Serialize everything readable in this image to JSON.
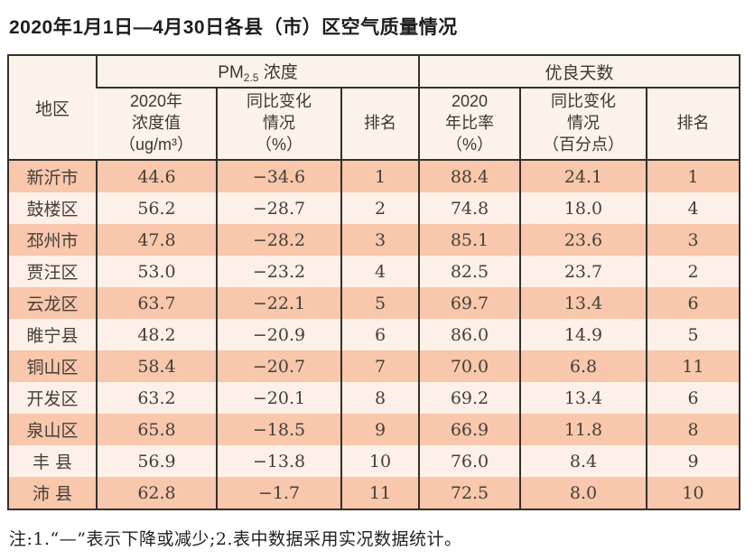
{
  "page": {
    "title": "2020年1月1日—4月30日各县（市）区空气质量情况",
    "note": "注:1.“—”表示下降或减少;2.表中数据采用实况数据统计。"
  },
  "colors": {
    "row_odd": "#f8c7ac",
    "row_even": "#fdf0e8",
    "header_bg": "#fbf3ea",
    "border": "#34302d"
  },
  "table": {
    "header": {
      "region": "地区",
      "pm_group_prefix": "PM",
      "pm_group_sub": "2.5",
      "pm_group_suffix": " 浓度",
      "days_group": "优良天数",
      "pm_value": "2020年\n浓度值\n（ug/m³）",
      "pm_change": "同比变化\n情况\n（%）",
      "pm_rank": "排名",
      "days_ratio": "2020\n年比率\n（%）",
      "days_change": "同比变化\n情况\n（百分点）",
      "days_rank": "排名"
    },
    "rows": [
      {
        "region": "新沂市",
        "pm_value": "44.6",
        "pm_change": "−34.6",
        "pm_rank": "1",
        "days_ratio": "88.4",
        "days_change": "24.1",
        "days_rank": "1"
      },
      {
        "region": "鼓楼区",
        "pm_value": "56.2",
        "pm_change": "−28.7",
        "pm_rank": "2",
        "days_ratio": "74.8",
        "days_change": "18.0",
        "days_rank": "4"
      },
      {
        "region": "邳州市",
        "pm_value": "47.8",
        "pm_change": "−28.2",
        "pm_rank": "3",
        "days_ratio": "85.1",
        "days_change": "23.6",
        "days_rank": "3"
      },
      {
        "region": "贾汪区",
        "pm_value": "53.0",
        "pm_change": "−23.2",
        "pm_rank": "4",
        "days_ratio": "82.5",
        "days_change": "23.7",
        "days_rank": "2"
      },
      {
        "region": "云龙区",
        "pm_value": "63.7",
        "pm_change": "−22.1",
        "pm_rank": "5",
        "days_ratio": "69.7",
        "days_change": "13.4",
        "days_rank": "6"
      },
      {
        "region": "睢宁县",
        "pm_value": "48.2",
        "pm_change": "−20.9",
        "pm_rank": "6",
        "days_ratio": "86.0",
        "days_change": "14.9",
        "days_rank": "5"
      },
      {
        "region": "铜山区",
        "pm_value": "58.4",
        "pm_change": "−20.7",
        "pm_rank": "7",
        "days_ratio": "70.0",
        "days_change": "6.8",
        "days_rank": "11"
      },
      {
        "region": "开发区",
        "pm_value": "63.2",
        "pm_change": "−20.1",
        "pm_rank": "8",
        "days_ratio": "69.2",
        "days_change": "13.4",
        "days_rank": "6"
      },
      {
        "region": "泉山区",
        "pm_value": "65.8",
        "pm_change": "−18.5",
        "pm_rank": "9",
        "days_ratio": "66.9",
        "days_change": "11.8",
        "days_rank": "8"
      },
      {
        "region": "丰 县",
        "pm_value": "56.9",
        "pm_change": "−13.8",
        "pm_rank": "10",
        "days_ratio": "76.0",
        "days_change": "8.4",
        "days_rank": "9"
      },
      {
        "region": "沛 县",
        "pm_value": "62.8",
        "pm_change": "−1.7",
        "pm_rank": "11",
        "days_ratio": "72.5",
        "days_change": "8.0",
        "days_rank": "10"
      }
    ]
  }
}
